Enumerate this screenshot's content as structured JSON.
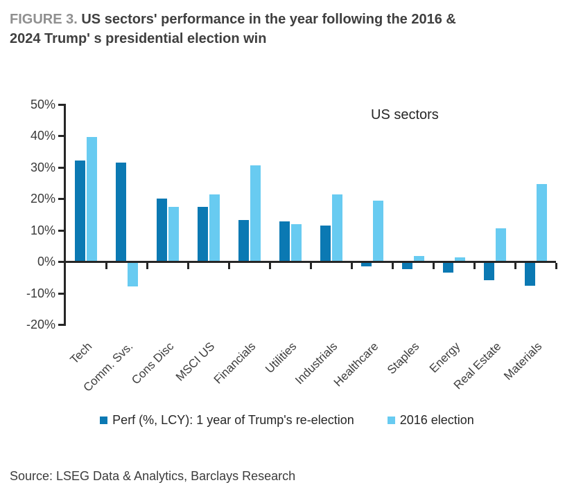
{
  "figure": {
    "label": "FIGURE 3.",
    "title_line1": "US sectors' performance in the year following the 2016 &",
    "title_line2": "2024 Trump' s presidential election win"
  },
  "chart_data": {
    "type": "bar",
    "annotation": "US sectors",
    "categories": [
      "Tech",
      "Comm. Svs.",
      "Cons Disc",
      "MSCI US",
      "Financials",
      "Utilities",
      "Industrials",
      "Healthcare",
      "Staples",
      "Energy",
      "Real Estate",
      "Materials"
    ],
    "series": [
      {
        "name": "Perf (%, LCY): 1 year of Trump's re-election",
        "color": "#0b79b3",
        "values": [
          31.8,
          31.2,
          19.7,
          17.2,
          13.0,
          12.6,
          11.2,
          -1.0,
          -2.0,
          -3.0,
          -5.5,
          -7.2
        ]
      },
      {
        "name": "2016 election",
        "color": "#68cbf1",
        "values": [
          39.3,
          -7.5,
          17.2,
          21.0,
          30.3,
          11.7,
          21.2,
          19.2,
          1.5,
          1.0,
          10.4,
          24.5
        ]
      }
    ],
    "ylim": [
      -20,
      50
    ],
    "yticks": [
      {
        "label": "50%",
        "value": 50
      },
      {
        "label": "40%",
        "value": 40
      },
      {
        "label": "30%",
        "value": 30
      },
      {
        "label": "20%",
        "value": 20
      },
      {
        "label": "10%",
        "value": 10
      },
      {
        "label": "0%",
        "value": 0
      },
      {
        "label": "-10%",
        "value": -10
      },
      {
        "label": "-20%",
        "value": -20
      }
    ],
    "grid": false,
    "legend_position": "bottom",
    "axis_color": "#262626"
  },
  "source": "Source: LSEG Data & Analytics, Barclays Research"
}
